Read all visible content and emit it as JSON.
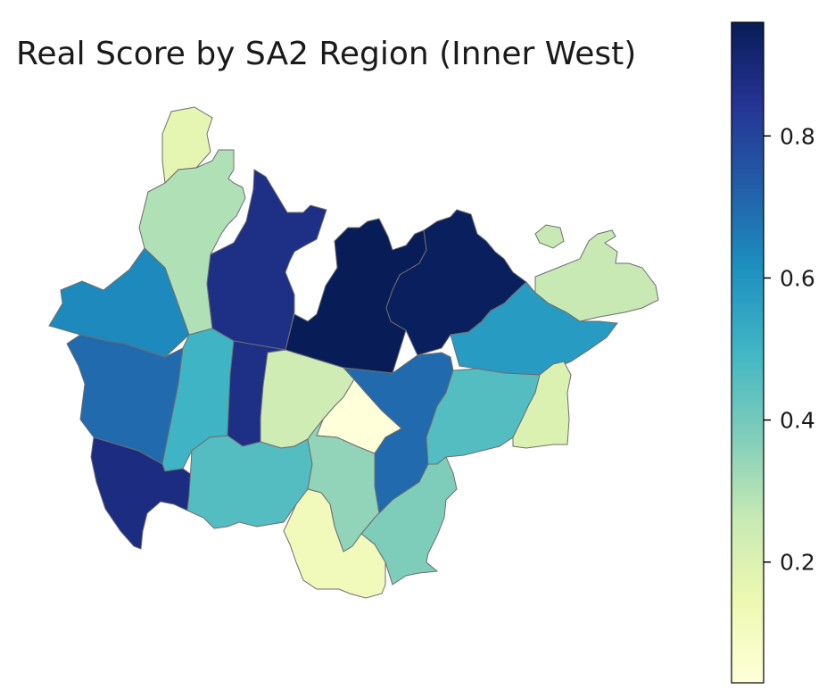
{
  "title": "Real Score by SA2 Region (Inner West)",
  "colormap": "YlGnBu",
  "colorbar": {
    "min": 0.03,
    "max": 0.96,
    "ticks": [
      {
        "value": 0.2,
        "label": "0.2"
      },
      {
        "value": 0.4,
        "label": "0.4"
      },
      {
        "value": 0.6,
        "label": "0.6"
      },
      {
        "value": 0.8,
        "label": "0.8"
      }
    ],
    "stops": [
      "#ffffd9",
      "#edf8b1",
      "#c7e9b4",
      "#7fcdbb",
      "#41b6c4",
      "#1d91c0",
      "#225ea8",
      "#253494",
      "#081d58"
    ]
  },
  "regions": [
    {
      "name": "region-northern-tip",
      "score": 0.17
    },
    {
      "name": "region-north-west-strip",
      "score": 0.3
    },
    {
      "name": "region-north-peninsula",
      "score": 0.87
    },
    {
      "name": "region-central-bay",
      "score": 0.96
    },
    {
      "name": "region-north-east-peninsula",
      "score": 0.95
    },
    {
      "name": "region-north-east-island",
      "score": 0.26
    },
    {
      "name": "region-far-west",
      "score": 0.63
    },
    {
      "name": "region-east-band",
      "score": 0.58
    },
    {
      "name": "region-west",
      "score": 0.7
    },
    {
      "name": "region-west-central-strip",
      "score": 0.5
    },
    {
      "name": "region-central-narrow",
      "score": 0.87
    },
    {
      "name": "region-central",
      "score": 0.24
    },
    {
      "name": "region-central-small",
      "score": 0.03
    },
    {
      "name": "region-central-east",
      "score": 0.7
    },
    {
      "name": "region-east-south",
      "score": 0.46
    },
    {
      "name": "region-far-east",
      "score": 0.2
    },
    {
      "name": "region-south-west",
      "score": 0.88
    },
    {
      "name": "region-south-central-west",
      "score": 0.46
    },
    {
      "name": "region-south-central",
      "score": 0.35
    },
    {
      "name": "region-south-east",
      "score": 0.38
    },
    {
      "name": "region-south",
      "score": 0.12
    }
  ]
}
